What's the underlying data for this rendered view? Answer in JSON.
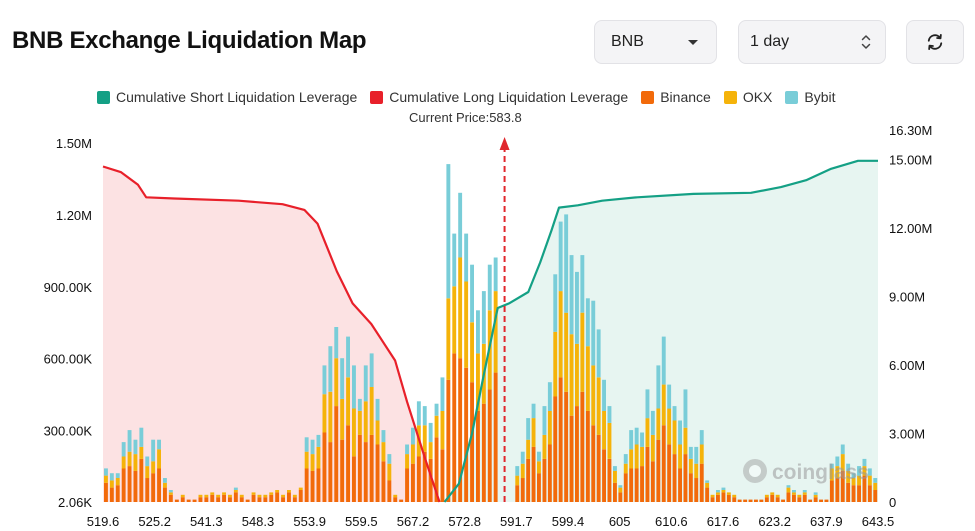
{
  "header": {
    "title": "BNB Exchange Liquidation Map",
    "symbol_select": "BNB",
    "range_select": "1 day",
    "refresh_icon": "refresh-icon"
  },
  "colors": {
    "short": "#14a085",
    "long": "#e8202a",
    "binance": "#f26a0a",
    "okx": "#f5b30a",
    "bybit": "#79cdd8",
    "short_area": "#e7f5f1",
    "long_area": "#fce2e3",
    "price_line": "#e0272d"
  },
  "chart_data": {
    "type": "bar",
    "legend": [
      {
        "key": "short",
        "label": "Cumulative Short Liquidation Leverage"
      },
      {
        "key": "long",
        "label": "Cumulative Long Liquidation Leverage"
      },
      {
        "key": "binance",
        "label": "Binance"
      },
      {
        "key": "okx",
        "label": "OKX"
      },
      {
        "key": "bybit",
        "label": "Bybit"
      }
    ],
    "current_price_label": "Current Price:583.8",
    "current_price": 583.8,
    "watermark": "coinglass",
    "x_tick_labels": [
      "519.6",
      "525.2",
      "541.3",
      "548.3",
      "553.9",
      "559.5",
      "567.2",
      "572.8",
      "591.7",
      "599.4",
      "605",
      "610.6",
      "617.6",
      "623.2",
      "637.9",
      "643.5"
    ],
    "x_range": [
      519.6,
      643.5
    ],
    "y_left_ticks": [
      "2.06K",
      "300.00K",
      "600.00K",
      "900.00K",
      "1.20M",
      "1.50M"
    ],
    "y_left_range": [
      2060,
      1500000
    ],
    "y_right_ticks": [
      "0",
      "3.00M",
      "6.00M",
      "9.00M",
      "12.00M",
      "15.00M",
      "16.30M"
    ],
    "y_right_range": [
      0,
      16300000
    ],
    "bar_unit": 10000,
    "bars_left": [
      [
        8,
        3,
        3
      ],
      [
        6,
        3,
        3
      ],
      [
        7,
        3,
        2
      ],
      [
        14,
        5,
        6
      ],
      [
        15,
        6,
        9
      ],
      [
        13,
        7,
        6
      ],
      [
        18,
        5,
        8
      ],
      [
        10,
        5,
        4
      ],
      [
        12,
        5,
        9
      ],
      [
        14,
        8,
        4
      ],
      [
        6,
        2,
        2
      ],
      [
        3,
        1,
        1
      ],
      [
        1,
        0,
        0
      ],
      [
        2,
        1,
        0
      ],
      [
        1,
        0,
        0
      ],
      [
        1,
        0,
        0
      ],
      [
        2,
        1,
        0
      ],
      [
        2,
        1,
        0
      ],
      [
        3,
        1,
        0
      ],
      [
        2,
        1,
        0
      ],
      [
        3,
        1,
        0
      ],
      [
        2,
        1,
        0
      ],
      [
        4,
        1,
        1
      ],
      [
        2,
        1,
        0
      ],
      [
        1,
        0,
        0
      ],
      [
        3,
        1,
        0
      ],
      [
        2,
        1,
        0
      ],
      [
        2,
        1,
        0
      ],
      [
        3,
        1,
        0
      ],
      [
        4,
        1,
        0
      ],
      [
        2,
        1,
        0
      ],
      [
        4,
        1,
        0
      ],
      [
        2,
        1,
        0
      ],
      [
        5,
        1,
        0
      ],
      [
        14,
        7,
        6
      ],
      [
        13,
        7,
        6
      ],
      [
        14,
        9,
        5
      ],
      [
        29,
        16,
        12
      ],
      [
        25,
        21,
        19
      ],
      [
        40,
        20,
        13
      ],
      [
        26,
        17,
        17
      ],
      [
        32,
        20,
        17
      ],
      [
        19,
        20,
        18
      ],
      [
        28,
        10,
        5
      ],
      [
        25,
        17,
        15
      ],
      [
        28,
        20,
        14
      ],
      [
        24,
        10,
        9
      ],
      [
        17,
        8,
        5
      ],
      [
        9,
        7,
        4
      ],
      [
        2,
        1,
        0
      ],
      [
        1,
        0,
        0
      ],
      [
        14,
        6,
        4
      ],
      [
        16,
        8,
        7
      ],
      [
        19,
        13,
        10
      ],
      [
        21,
        11,
        8
      ],
      [
        18,
        7,
        8
      ],
      [
        27,
        9,
        5
      ],
      [
        22,
        16,
        14
      ],
      [
        51,
        34,
        56
      ],
      [
        62,
        28,
        22
      ],
      [
        60,
        42,
        27
      ],
      [
        56,
        36,
        20
      ],
      [
        50,
        25,
        24
      ],
      [
        38,
        24,
        18
      ],
      [
        41,
        25,
        22
      ],
      [
        47,
        33,
        19
      ],
      [
        54,
        34,
        14
      ]
    ],
    "bars_right": [
      [
        7,
        4,
        4
      ],
      [
        10,
        6,
        5
      ],
      [
        18,
        8,
        9
      ],
      [
        23,
        12,
        6
      ],
      [
        12,
        5,
        4
      ],
      [
        18,
        10,
        12
      ],
      [
        24,
        14,
        12
      ],
      [
        44,
        27,
        24
      ],
      [
        52,
        36,
        29
      ],
      [
        46,
        33,
        41
      ],
      [
        36,
        34,
        33
      ],
      [
        40,
        26,
        30
      ],
      [
        46,
        33,
        24
      ],
      [
        38,
        27,
        20
      ],
      [
        32,
        25,
        27
      ],
      [
        28,
        24,
        20
      ],
      [
        22,
        16,
        13
      ],
      [
        18,
        15,
        7
      ],
      [
        8,
        5,
        2
      ],
      [
        4,
        2,
        1
      ],
      [
        12,
        4,
        4
      ],
      [
        14,
        8,
        8
      ],
      [
        14,
        10,
        7
      ],
      [
        15,
        8,
        6
      ],
      [
        23,
        12,
        12
      ],
      [
        17,
        11,
        10
      ],
      [
        26,
        13,
        18
      ],
      [
        32,
        17,
        20
      ],
      [
        24,
        15,
        10
      ],
      [
        20,
        14,
        6
      ],
      [
        14,
        10,
        10
      ],
      [
        20,
        11,
        16
      ],
      [
        12,
        6,
        5
      ],
      [
        10,
        6,
        7
      ],
      [
        16,
        8,
        6
      ],
      [
        6,
        2,
        1
      ],
      [
        2,
        1,
        0
      ],
      [
        3,
        1,
        1
      ],
      [
        4,
        1,
        1
      ],
      [
        3,
        1,
        0
      ],
      [
        2,
        1,
        0
      ],
      [
        1,
        0,
        0
      ],
      [
        1,
        0,
        0
      ],
      [
        1,
        0,
        0
      ],
      [
        1,
        0,
        0
      ],
      [
        1,
        0,
        0
      ],
      [
        2,
        1,
        0
      ],
      [
        3,
        1,
        0
      ],
      [
        2,
        1,
        0
      ],
      [
        1,
        0,
        0
      ],
      [
        4,
        2,
        1
      ],
      [
        3,
        1,
        1
      ],
      [
        2,
        1,
        0
      ],
      [
        3,
        1,
        1
      ],
      [
        1,
        0,
        0
      ],
      [
        2,
        1,
        1
      ],
      [
        1,
        0,
        0
      ],
      [
        1,
        0,
        0
      ],
      [
        9,
        5,
        2
      ],
      [
        10,
        5,
        4
      ],
      [
        13,
        7,
        4
      ],
      [
        8,
        5,
        3
      ],
      [
        7,
        3,
        2
      ],
      [
        7,
        4,
        4
      ],
      [
        11,
        4,
        3
      ],
      [
        7,
        4,
        3
      ],
      [
        5,
        3,
        2
      ]
    ],
    "long_cumulative_m": [
      [
        519.6,
        14.7
      ],
      [
        522.5,
        14.45
      ],
      [
        525.2,
        13.9
      ],
      [
        526.5,
        13.35
      ],
      [
        531,
        13.3
      ],
      [
        541.3,
        13.2
      ],
      [
        548.3,
        13.05
      ],
      [
        551.8,
        12.8
      ],
      [
        553.9,
        12.2
      ],
      [
        557.0,
        10.1
      ],
      [
        559.5,
        8.7
      ],
      [
        562.5,
        7.8
      ],
      [
        566.3,
        6.2
      ],
      [
        568.2,
        4.4
      ],
      [
        571.1,
        1.9
      ],
      [
        573.4,
        0.0
      ]
    ],
    "short_cumulative_m": [
      [
        574.2,
        0.0
      ],
      [
        576.5,
        0.8
      ],
      [
        578.6,
        3.0
      ],
      [
        580.5,
        5.6
      ],
      [
        582.7,
        8.5
      ],
      [
        584.5,
        8.7
      ],
      [
        587.6,
        9.2
      ],
      [
        589.5,
        10.5
      ],
      [
        591.3,
        11.9
      ],
      [
        592.5,
        12.9
      ],
      [
        595.5,
        13.0
      ],
      [
        599.4,
        13.2
      ],
      [
        605,
        13.35
      ],
      [
        614,
        13.5
      ],
      [
        623.2,
        13.55
      ],
      [
        628,
        13.8
      ],
      [
        632,
        14.1
      ],
      [
        636,
        14.6
      ],
      [
        640.3,
        14.95
      ],
      [
        643.5,
        14.95
      ]
    ]
  }
}
